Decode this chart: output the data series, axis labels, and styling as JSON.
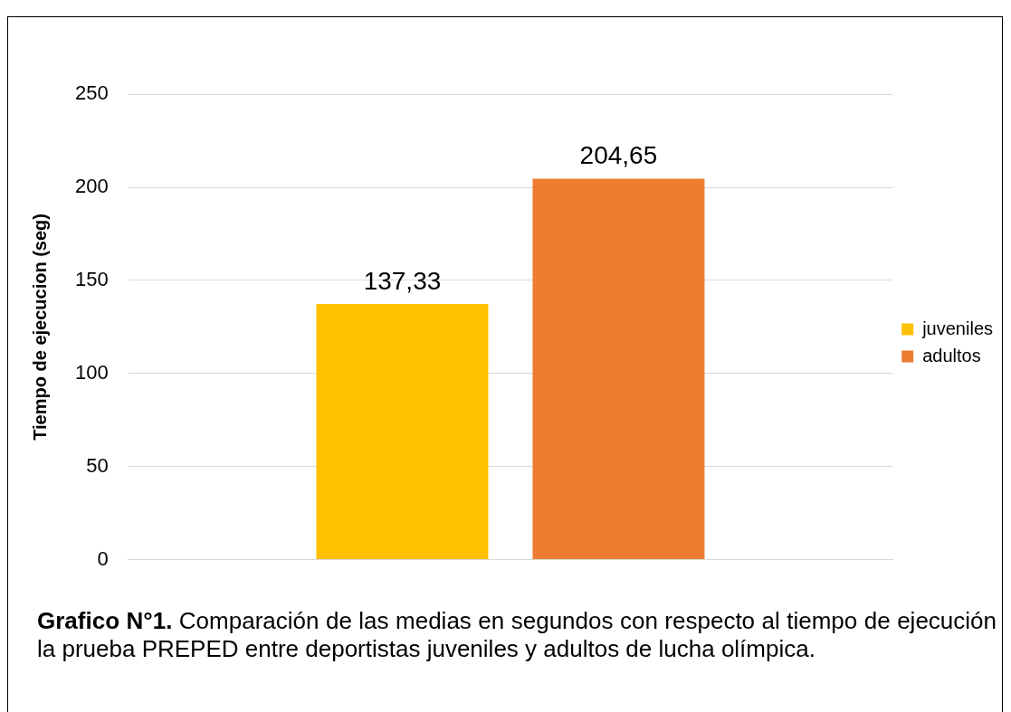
{
  "chart_data": {
    "type": "bar",
    "ylabel": "Tiempo de ejecucion (seg)",
    "categories": [
      null
    ],
    "series": [
      {
        "name": "juveniles",
        "color": "#ffc000",
        "values": [
          137.33
        ],
        "value_labels": [
          "137,33"
        ]
      },
      {
        "name": "adultos",
        "color": "#ed7d31",
        "values": [
          204.65
        ],
        "value_labels": [
          "204,65"
        ]
      }
    ],
    "ylim": [
      0,
      250
    ],
    "yticks": [
      0,
      50,
      100,
      150,
      200,
      250
    ],
    "grid": "y",
    "legend": "right",
    "annotations": [
      "Grafico N°1.",
      "Comparación de las medias en segundos con respecto al tiempo de ejecución la prueba PREPED entre deportistas juveniles y adultos de lucha olímpica."
    ]
  }
}
